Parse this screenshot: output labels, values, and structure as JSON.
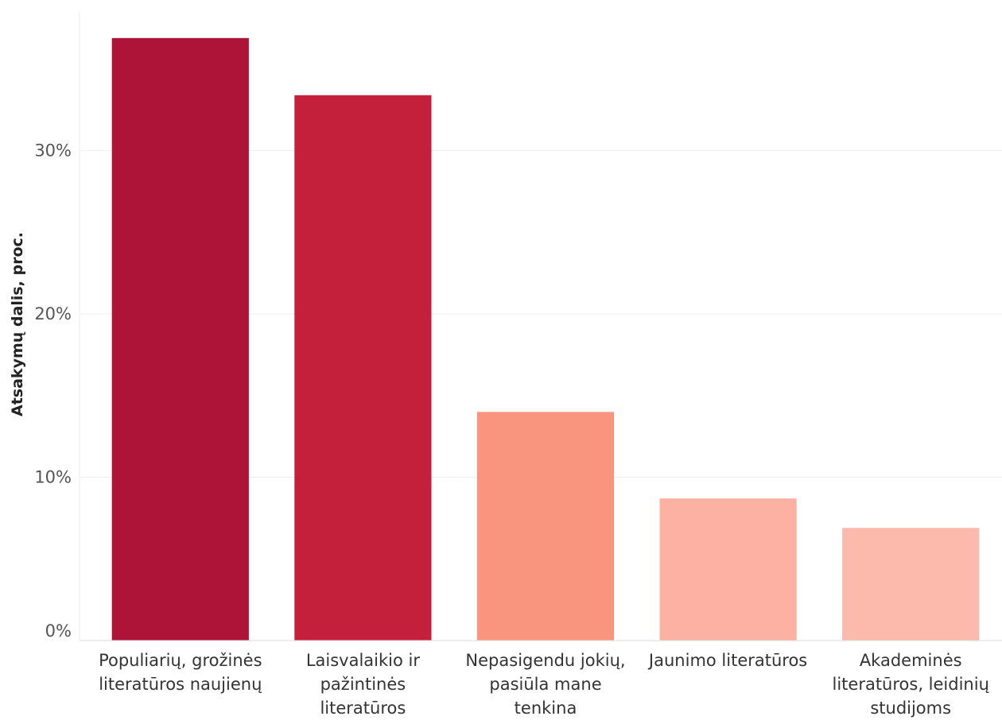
{
  "chart_data": {
    "type": "bar",
    "ylabel": "Atsakymų dalis, proc.",
    "xlabel": "",
    "ylim": [
      0,
      38.5
    ],
    "yticks": [
      0,
      10,
      20,
      30
    ],
    "ytick_labels": [
      "0%",
      "10%",
      "20%",
      "30%"
    ],
    "grid": true,
    "categories": [
      [
        "Populiarių, grožinės",
        "literatūros naujienų"
      ],
      [
        "Laisvalaikio ir",
        "pažintinės",
        "literatūros"
      ],
      [
        "Nepasigendu jokių,",
        "pasiūla mane",
        "tenkina"
      ],
      [
        "Jaunimo literatūros"
      ],
      [
        "Akademinės",
        "literatūros, leidinių",
        "studijoms"
      ]
    ],
    "values": [
      36.9,
      33.4,
      14.0,
      8.7,
      6.9
    ],
    "colors": [
      "#ad1438",
      "#c41f3b",
      "#f9957e",
      "#fcb1a2",
      "#fcbaac"
    ]
  }
}
